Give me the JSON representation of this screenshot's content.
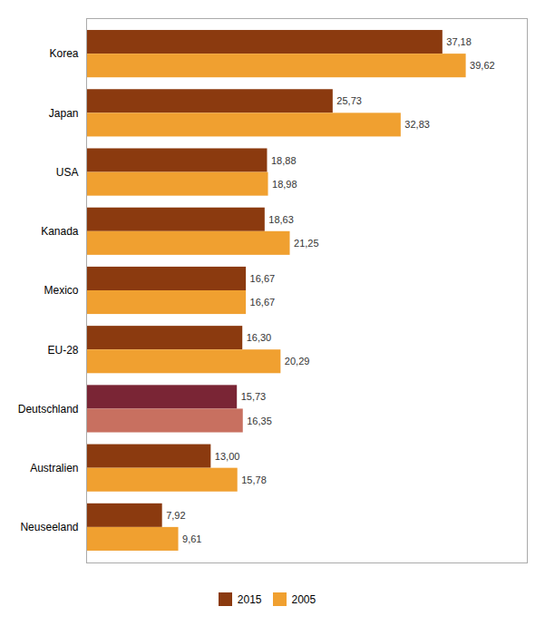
{
  "chart_data": {
    "type": "bar",
    "orientation": "horizontal",
    "categories": [
      "Korea",
      "Japan",
      "USA",
      "Kanada",
      "Mexico",
      "EU-28",
      "Deutschland",
      "Australien",
      "Neuseeland"
    ],
    "series": [
      {
        "name": "2015",
        "color": "#8B3A0F",
        "colors": [
          "#8B3A0F",
          "#8B3A0F",
          "#8B3A0F",
          "#8B3A0F",
          "#8B3A0F",
          "#8B3A0F",
          "#7A2535",
          "#8B3A0F",
          "#8B3A0F"
        ],
        "values": [
          37.18,
          25.73,
          18.88,
          18.63,
          16.67,
          16.3,
          15.73,
          13.0,
          7.92
        ],
        "value_labels": [
          "37,18",
          "25,73",
          "18,88",
          "18,63",
          "16,67",
          "16,30",
          "15,73",
          "13,00",
          "7,92"
        ]
      },
      {
        "name": "2005",
        "color": "#F0A030",
        "colors": [
          "#F0A030",
          "#F0A030",
          "#F0A030",
          "#F0A030",
          "#F0A030",
          "#F0A030",
          "#C87060",
          "#F0A030",
          "#F0A030"
        ],
        "values": [
          39.62,
          32.83,
          18.98,
          21.25,
          16.67,
          20.29,
          16.35,
          15.78,
          9.61
        ],
        "value_labels": [
          "39,62",
          "32,83",
          "18,98",
          "21,25",
          "16,67",
          "20,29",
          "16,35",
          "15,78",
          "9,61"
        ]
      }
    ],
    "xlim": [
      0,
      46
    ],
    "data_labels": true,
    "tick_labels": "y",
    "grid": false,
    "legend": "bottom"
  }
}
